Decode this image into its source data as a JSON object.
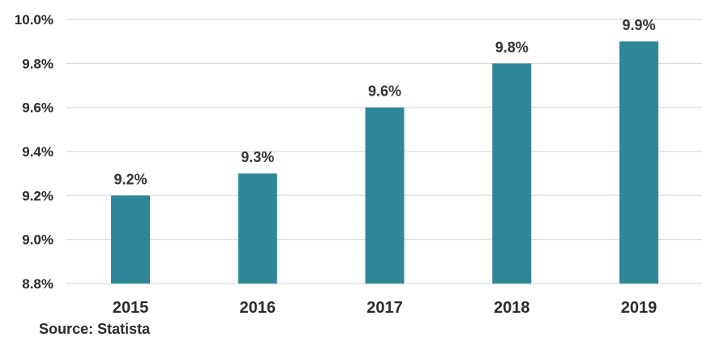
{
  "chart_data": {
    "type": "bar",
    "categories": [
      "2015",
      "2016",
      "2017",
      "2018",
      "2019"
    ],
    "values": [
      9.2,
      9.3,
      9.6,
      9.8,
      9.9
    ],
    "data_labels": [
      "9.2%",
      "9.3%",
      "9.6%",
      "9.8%",
      "9.9%"
    ],
    "ylim": [
      8.8,
      10.0
    ],
    "yticks": [
      8.8,
      9.0,
      9.2,
      9.4,
      9.6,
      9.8,
      10.0
    ],
    "ytick_labels": [
      "8.8%",
      "9.0%",
      "9.2%",
      "9.4%",
      "9.6%",
      "9.8%",
      "10.0%"
    ],
    "grid": true,
    "bar_color": "#2e8799",
    "grid_color": "#d9d9d9"
  },
  "source": "Source: Statista"
}
